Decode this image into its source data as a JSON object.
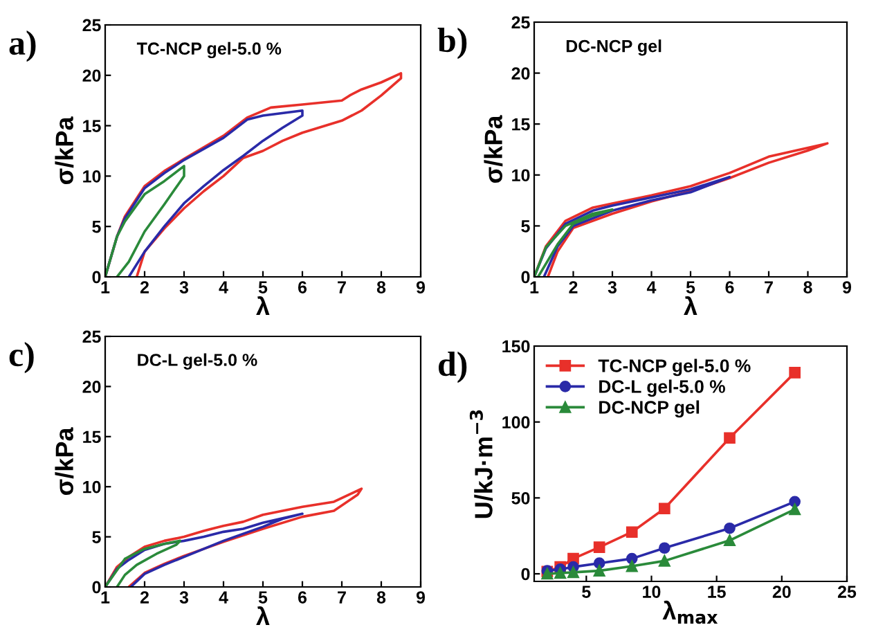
{
  "chart_data": [
    {
      "type": "line",
      "title": "a)",
      "annotations": [
        "TC-NCP gel-5.0 %"
      ],
      "xlabel": "λ",
      "ylabel": "σ/kPa",
      "xlim": [
        1,
        9
      ],
      "xticks": [
        1,
        2,
        3,
        4,
        5,
        6,
        7,
        8,
        9
      ],
      "ylim": [
        0,
        25
      ],
      "yticks": [
        0,
        5,
        10,
        15,
        20,
        25
      ],
      "grid": false,
      "legend": false,
      "marker": "none",
      "series": [
        {
          "color": "#e8302a",
          "x": [
            1,
            1.3,
            1.5,
            2,
            2.5,
            3,
            4,
            4.6,
            5.2,
            6,
            7,
            7.2,
            7.5,
            8,
            8.5,
            8.5,
            8,
            7.5,
            7,
            6,
            5.5,
            5,
            4.5,
            4,
            3.5,
            3,
            2.5,
            2,
            1.8
          ],
          "values": [
            0,
            4,
            6,
            9,
            10.5,
            11.7,
            14,
            15.8,
            16.8,
            17.1,
            17.5,
            18,
            18.6,
            19.3,
            20.2,
            19.7,
            18,
            16.5,
            15.5,
            14.3,
            13.5,
            12.5,
            11.8,
            10,
            8.5,
            6.8,
            4.8,
            2.5,
            0
          ]
        },
        {
          "color": "#2a2aa8",
          "x": [
            1,
            1.3,
            1.5,
            2,
            2.5,
            3,
            4,
            4.6,
            5,
            6,
            6,
            5.5,
            5,
            4.5,
            4,
            3.5,
            3,
            2.5,
            2,
            1.6
          ],
          "values": [
            0,
            4,
            5.8,
            8.8,
            10.3,
            11.6,
            13.8,
            15.6,
            16,
            16.5,
            16,
            14.8,
            13.5,
            12,
            10.6,
            9,
            7.3,
            5,
            2.5,
            0
          ]
        },
        {
          "color": "#2a8a3a",
          "x": [
            1,
            1.3,
            1.5,
            2,
            2.5,
            3,
            3,
            2.5,
            2,
            1.6,
            1.3
          ],
          "values": [
            0,
            4,
            5.5,
            8.2,
            9.5,
            11,
            10,
            7.2,
            4.5,
            1.5,
            0
          ]
        }
      ]
    },
    {
      "type": "line",
      "title": "b)",
      "annotations": [
        "DC-NCP gel"
      ],
      "xlabel": "λ",
      "ylabel": "σ/kPa",
      "xlim": [
        1,
        9
      ],
      "xticks": [
        1,
        2,
        3,
        4,
        5,
        6,
        7,
        8,
        9
      ],
      "ylim": [
        0,
        25
      ],
      "yticks": [
        0,
        5,
        10,
        15,
        20,
        25
      ],
      "grid": false,
      "legend": false,
      "marker": "none",
      "series": [
        {
          "color": "#e8302a",
          "x": [
            1,
            1.3,
            1.8,
            2.5,
            3,
            4,
            5,
            6,
            7,
            8.5,
            8,
            7,
            6,
            5,
            4,
            3,
            2,
            1.6,
            1.35
          ],
          "values": [
            0,
            3,
            5.5,
            6.8,
            7.2,
            8,
            8.9,
            10.2,
            11.8,
            13.1,
            12.4,
            11.2,
            9.7,
            8.4,
            7.4,
            6.2,
            4.8,
            2.5,
            0
          ]
        },
        {
          "color": "#2a2aa8",
          "x": [
            1,
            1.3,
            1.8,
            2.5,
            3,
            4,
            5,
            6,
            5,
            4,
            3,
            2,
            1.6,
            1.25
          ],
          "values": [
            0,
            2.8,
            5.2,
            6.5,
            7,
            7.8,
            8.6,
            9.8,
            8.3,
            7.5,
            6.5,
            5,
            3,
            0
          ]
        },
        {
          "color": "#2a8a3a",
          "x": [
            1,
            1.3,
            1.8,
            2.5,
            3,
            2.5,
            2,
            1.6,
            1.1
          ],
          "values": [
            0,
            2.9,
            5,
            6.2,
            6.6,
            6,
            5.2,
            3.2,
            0
          ]
        }
      ]
    },
    {
      "type": "line",
      "title": "c)",
      "annotations": [
        "DC-L gel-5.0 %"
      ],
      "xlabel": "λ",
      "ylabel": "σ/kPa",
      "xlim": [
        1,
        9
      ],
      "xticks": [
        1,
        2,
        3,
        4,
        5,
        6,
        7,
        8,
        9
      ],
      "ylim": [
        0,
        25
      ],
      "yticks": [
        0,
        5,
        10,
        15,
        20,
        25
      ],
      "grid": false,
      "legend": false,
      "marker": "none",
      "series": [
        {
          "color": "#e8302a",
          "x": [
            1,
            1.3,
            1.6,
            2,
            2.5,
            3,
            3.5,
            4,
            4.5,
            5,
            6,
            6.8,
            7.5,
            7.4,
            6.8,
            6,
            5,
            4,
            3,
            2.5,
            2,
            1.6
          ],
          "values": [
            0,
            2,
            3,
            4,
            4.6,
            5,
            5.6,
            6.1,
            6.5,
            7.2,
            8,
            8.5,
            9.8,
            9.2,
            7.6,
            7,
            5.8,
            4.5,
            3.1,
            2.3,
            1.4,
            0
          ]
        },
        {
          "color": "#2a2aa8",
          "x": [
            1,
            1.3,
            1.6,
            2,
            2.5,
            3,
            3.5,
            4,
            4.5,
            5,
            6,
            5.5,
            5,
            4,
            3,
            2.5,
            2,
            1.65
          ],
          "values": [
            0,
            1.8,
            2.7,
            3.7,
            4.3,
            4.6,
            5,
            5.5,
            5.8,
            6.4,
            7.3,
            6.8,
            6,
            4.6,
            3,
            2.2,
            1.3,
            0
          ]
        },
        {
          "color": "#2a8a3a",
          "x": [
            1,
            1.5,
            2,
            2.5,
            2.9,
            2.8,
            2.3,
            1.8,
            1.5,
            1.3
          ],
          "values": [
            0,
            2.8,
            3.8,
            4.3,
            4.6,
            4.2,
            3.3,
            2.2,
            1.2,
            0
          ]
        }
      ]
    },
    {
      "type": "line",
      "title": "d)",
      "xlabel": "λ$_{max}$",
      "ylabel": "U/kJ·m$^{−3}$",
      "xlim": [
        1,
        25
      ],
      "xticks": [
        5,
        10,
        15,
        20,
        25
      ],
      "ylim": [
        -5,
        150
      ],
      "yticks": [
        0,
        50,
        100,
        150
      ],
      "grid": false,
      "legend": "top left",
      "x": [
        2,
        3,
        4,
        6,
        8.5,
        11,
        16,
        21
      ],
      "series": [
        {
          "name": "TC-NCP gel-5.0 %",
          "color": "#e8302a",
          "marker": "square",
          "values": [
            1.5,
            4.5,
            10,
            17.5,
            27.5,
            43,
            89.5,
            132.5
          ]
        },
        {
          "name": "DC-L gel-5.0 %",
          "color": "#2a2aa8",
          "marker": "circle",
          "values": [
            2,
            3,
            4.5,
            7,
            10,
            17,
            30,
            47.5
          ]
        },
        {
          "name": "DC-NCP gel",
          "color": "#2a8a3a",
          "marker": "triangle",
          "values": [
            0,
            0.5,
            1,
            2,
            5,
            8.5,
            22,
            42.5
          ]
        }
      ]
    }
  ]
}
